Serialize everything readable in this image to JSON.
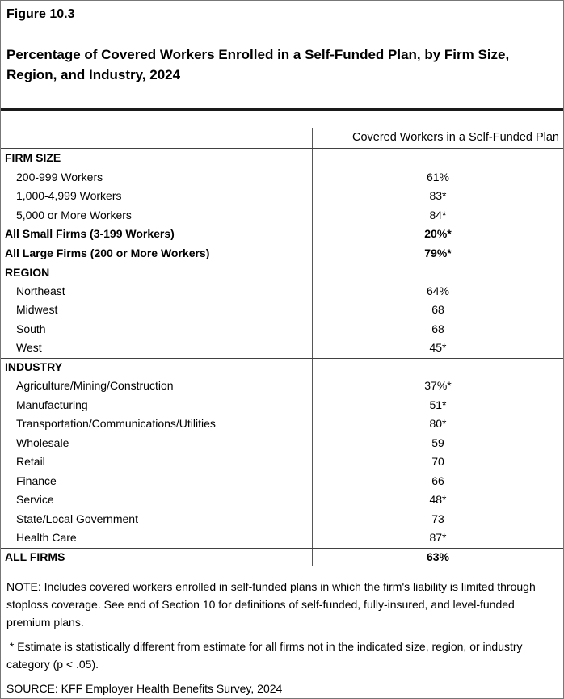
{
  "figure_label": "Figure 10.3",
  "title": "Percentage of Covered Workers Enrolled in a Self-Funded Plan, by Firm Size, Region, and Industry, 2024",
  "table": {
    "value_column_header": "Covered Workers in a Self-Funded Plan",
    "sections": [
      {
        "header": "FIRM SIZE",
        "rows": [
          {
            "label": "200-999 Workers",
            "value": "61%"
          },
          {
            "label": "1,000-4,999 Workers",
            "value": "83*"
          },
          {
            "label": "5,000 or More Workers",
            "value": "84*"
          },
          {
            "label": "All Small Firms (3-199 Workers)",
            "value": "20%*"
          },
          {
            "label": "All Large Firms (200 or More Workers)",
            "value": "79%*"
          }
        ]
      },
      {
        "header": "REGION",
        "rows": [
          {
            "label": "Northeast",
            "value": "64%"
          },
          {
            "label": "Midwest",
            "value": "68"
          },
          {
            "label": "South",
            "value": "68"
          },
          {
            "label": "West",
            "value": "45*"
          }
        ]
      },
      {
        "header": "INDUSTRY",
        "rows": [
          {
            "label": "Agriculture/Mining/Construction",
            "value": "37%*"
          },
          {
            "label": "Manufacturing",
            "value": "51*"
          },
          {
            "label": "Transportation/Communications/Utilities",
            "value": "80*"
          },
          {
            "label": "Wholesale",
            "value": "59"
          },
          {
            "label": "Retail",
            "value": "70"
          },
          {
            "label": "Finance",
            "value": "66"
          },
          {
            "label": "Service",
            "value": "48*"
          },
          {
            "label": "State/Local Government",
            "value": "73"
          },
          {
            "label": "Health Care",
            "value": "87*"
          }
        ]
      }
    ],
    "total_row": {
      "label": "ALL FIRMS",
      "value": "63%"
    }
  },
  "notes": {
    "note": "NOTE: Includes covered workers enrolled in self-funded plans in which the firm's liability is limited through stoploss coverage. See end of Section 10 for definitions of self-funded, fully-insured, and level-funded premium plans.",
    "asterisk": " * Estimate is statistically different from estimate for all firms not in the indicated size, region, or industry category (p < .05).",
    "source": "SOURCE: KFF Employer Health Benefits Survey, 2024"
  }
}
